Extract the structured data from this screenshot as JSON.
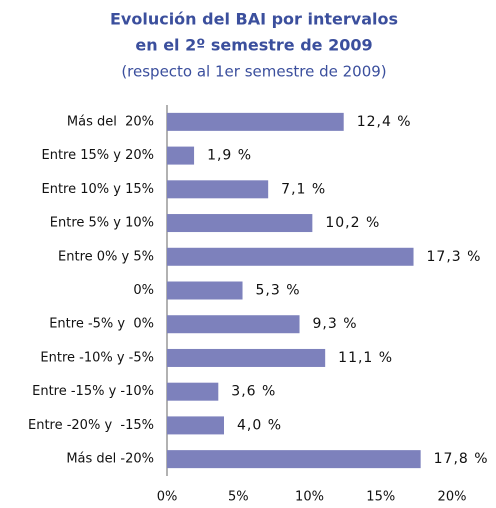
{
  "chart_data": {
    "type": "bar",
    "orientation": "horizontal",
    "title_lines": [
      "Evolución del BAI por intervalos",
      "en el 2º semestre de 2009"
    ],
    "subtitle": "(respecto al 1er semestre de 2009)",
    "categories": [
      "Más del  20%",
      "Entre 15% y 20%",
      "Entre 10% y 15%",
      "Entre 5% y 10%",
      "Entre 0% y 5%",
      "0%",
      "Entre -5% y  0%",
      "Entre -10% y -5%",
      "Entre -15% y -10%",
      "Entre -20% y  -15%",
      "Más del -20%"
    ],
    "values": [
      12.4,
      1.9,
      7.1,
      10.2,
      17.3,
      5.3,
      9.3,
      11.1,
      3.6,
      4.0,
      17.8
    ],
    "value_labels": [
      "12,4 %",
      "1,9 %",
      "7,1 %",
      "10,2 %",
      "17,3 %",
      "5,3 %",
      "9,3 %",
      "11,1 %",
      "3,6 %",
      "4,0 %",
      "17,8 %"
    ],
    "color": "#7d81bc",
    "xlim": [
      0,
      20
    ],
    "xticks": [
      {
        "value": 0,
        "label": "0%"
      },
      {
        "value": 5,
        "label": "5%"
      },
      {
        "value": 10,
        "label": "10%"
      },
      {
        "value": 15,
        "label": "15%"
      },
      {
        "value": 20,
        "label": "20%"
      }
    ]
  }
}
